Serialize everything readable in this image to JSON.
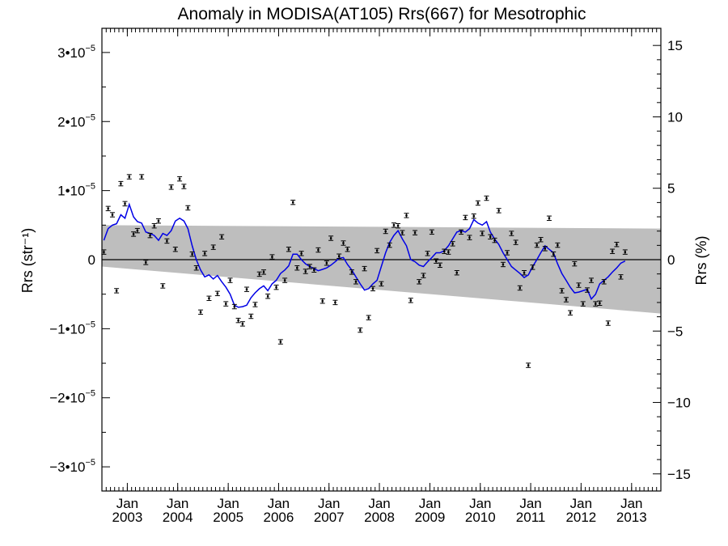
{
  "chart_data": {
    "type": "scatter",
    "title": "Anomaly in MODISA(AT105) Rrs(667) for Mesotrophic",
    "ylabel_left": "Rrs (str⁻¹)",
    "ylabel_right": "Rrs (%)",
    "xlim": [
      "2002-07-01",
      "2013-08-01"
    ],
    "ylim_left": [
      -3.35e-05,
      3.35e-05
    ],
    "ylim_right": [
      -16.2,
      16.2
    ],
    "grid": false,
    "legend": "none",
    "left_ticks": [
      {
        "value": 3e-05,
        "label": "3•10",
        "exp": "−5"
      },
      {
        "value": 2e-05,
        "label": "2•10",
        "exp": "−5"
      },
      {
        "value": 1e-05,
        "label": "1•10",
        "exp": "−5"
      },
      {
        "value": 0,
        "label": "0",
        "exp": ""
      },
      {
        "value": -1e-05,
        "label": "−1•10",
        "exp": "−5"
      },
      {
        "value": -2e-05,
        "label": "−2•10",
        "exp": "−5"
      },
      {
        "value": -3e-05,
        "label": "−3•10",
        "exp": "−5"
      }
    ],
    "right_ticks": [
      {
        "value": 15,
        "label": "15"
      },
      {
        "value": 10,
        "label": "10"
      },
      {
        "value": 5,
        "label": "5"
      },
      {
        "value": 0,
        "label": "0"
      },
      {
        "value": -5,
        "label": "−5"
      },
      {
        "value": -10,
        "label": "−10"
      },
      {
        "value": -15,
        "label": "−15"
      }
    ],
    "x_ticks": [
      {
        "date": "2003-01-01",
        "month": "Jan",
        "year": "2003"
      },
      {
        "date": "2004-01-01",
        "month": "Jan",
        "year": "2004"
      },
      {
        "date": "2005-01-01",
        "month": "Jan",
        "year": "2005"
      },
      {
        "date": "2006-01-01",
        "month": "Jan",
        "year": "2006"
      },
      {
        "date": "2007-01-01",
        "month": "Jan",
        "year": "2007"
      },
      {
        "date": "2008-01-01",
        "month": "Jan",
        "year": "2008"
      },
      {
        "date": "2009-01-01",
        "month": "Jan",
        "year": "2009"
      },
      {
        "date": "2010-01-01",
        "month": "Jan",
        "year": "2010"
      },
      {
        "date": "2011-01-01",
        "month": "Jan",
        "year": "2011"
      },
      {
        "date": "2012-01-01",
        "month": "Jan",
        "year": "2012"
      },
      {
        "date": "2013-01-01",
        "month": "Jan",
        "year": "2013"
      }
    ],
    "uncertainty_band": {
      "start": {
        "date": "2002-07-01",
        "upper": 5e-06,
        "lower": -1e-06
      },
      "end": {
        "date": "2013-08-01",
        "upper": 4.5e-06,
        "lower": -7.8e-06
      }
    },
    "zero_line": 0,
    "monthly_anomaly": {
      "start": "2002-07",
      "error_bar": 2e-07,
      "values": [
        1.1e-06,
        7.4e-06,
        6.5e-06,
        -4.5e-06,
        1.1e-05,
        8.1e-06,
        1.2e-05,
        3.7e-06,
        4.2e-06,
        1.2e-05,
        -4e-07,
        3.5e-06,
        4.9e-06,
        5.6e-06,
        -3.8e-06,
        2.7e-06,
        1.05e-05,
        1.5e-06,
        1.17e-05,
        1.06e-05,
        7.5e-06,
        8e-07,
        -1.2e-06,
        -7.6e-06,
        9e-07,
        -5.6e-06,
        1.8e-06,
        -4.9e-06,
        3.3e-06,
        -6.4e-06,
        -3e-06,
        -6.8e-06,
        -8.8e-06,
        -9.3e-06,
        -4.3e-06,
        -8.2e-06,
        -6.5e-06,
        -2.1e-06,
        -1.8e-06,
        -5.3e-06,
        4e-07,
        -4e-06,
        -1.19e-05,
        -3e-06,
        1.5e-06,
        8.3e-06,
        -1.2e-06,
        9e-07,
        -1.7e-06,
        -1e-06,
        -1.5e-06,
        1.4e-06,
        -6e-06,
        -5e-07,
        3.1e-06,
        -6.2e-06,
        5e-07,
        2.4e-06,
        1.5e-06,
        -1.8e-06,
        -3.2e-06,
        -1.02e-05,
        -1.3e-06,
        -8.4e-06,
        -4.2e-06,
        1.3e-06,
        -3.5e-06,
        4.1e-06,
        2.1e-06,
        5e-06,
        4.9e-06,
        3.9e-06,
        6.4e-06,
        -5.9e-06,
        3.9e-06,
        -3.2e-06,
        -2.3e-06,
        9e-07,
        4e-06,
        -2e-07,
        -8e-07,
        1.2e-06,
        1.1e-06,
        2.3e-06,
        -1.9e-06,
        4e-06,
        6.1e-06,
        3.2e-06,
        6.3e-06,
        8.2e-06,
        3.8e-06,
        8.9e-06,
        3.3e-06,
        2.8e-06,
        7.1e-06,
        -7e-07,
        1e-06,
        3.8e-06,
        2.5e-06,
        -4.1e-06,
        -1.9e-06,
        -1.53e-05,
        -1.1e-06,
        2.1e-06,
        2.9e-06,
        1.6e-06,
        6e-06,
        8e-07,
        2.1e-06,
        -4.5e-06,
        -5.8e-06,
        -7.7e-06,
        -6e-07,
        -3.7e-06,
        -6.4e-06,
        -4.4e-06,
        -3e-06,
        -6.4e-06,
        -6.3e-06,
        -3.2e-06,
        -9.2e-06,
        1.2e-06,
        2.2e-06,
        -2.5e-06,
        1.1e-06
      ]
    },
    "running_mean": {
      "start": "2002-07",
      "values": [
        2.8e-06,
        4.5e-06,
        5e-06,
        5.2e-06,
        6.5e-06,
        6e-06,
        8e-06,
        6.2e-06,
        5.5e-06,
        5.3e-06,
        4e-06,
        3.8e-06,
        3.5e-06,
        2.8e-06,
        3.8e-06,
        3.5e-06,
        4.2e-06,
        5.6e-06,
        6e-06,
        5.6e-06,
        4.5e-06,
        2e-06,
        0.0,
        -1.5e-06,
        -2.5e-06,
        -2.2e-06,
        -2.8e-06,
        -2.3e-06,
        -3.2e-06,
        -4e-06,
        -5e-06,
        -6.6e-06,
        -6.9e-06,
        -6.8e-06,
        -6.6e-06,
        -5.5e-06,
        -4.8e-06,
        -4.2e-06,
        -3.8e-06,
        -4.5e-06,
        -3.5e-06,
        -3e-06,
        -2e-06,
        -1.5e-06,
        -9e-07,
        8e-07,
        8e-07,
        0.0,
        -6e-07,
        -1e-06,
        -1.3e-06,
        -1.6e-06,
        -1.4e-06,
        -1.2e-06,
        -8e-07,
        -3e-07,
        2e-07,
        3e-07,
        -7e-07,
        -1.5e-06,
        -2.5e-06,
        -3.5e-06,
        -4.4e-06,
        -4.2e-06,
        -3.5e-06,
        -3e-06,
        -1e-06,
        1e-06,
        2.5e-06,
        3.5e-06,
        4.2e-06,
        3e-06,
        2e-06,
        0.0,
        -3e-07,
        -8e-07,
        -1e-06,
        -3e-07,
        3e-07,
        1e-06,
        1e-06,
        1.3e-06,
        2e-06,
        3e-06,
        4e-06,
        4.2e-06,
        4e-06,
        4.5e-06,
        5.8e-06,
        5.3e-06,
        5e-06,
        5.5e-06,
        4e-06,
        3e-06,
        2.2e-06,
        1e-06,
        0.0,
        -1e-06,
        -1.5e-06,
        -2e-06,
        -2.6e-06,
        -2.2e-06,
        -1e-06,
        0.0,
        1e-06,
        2e-06,
        1.5e-06,
        1e-06,
        -6e-07,
        -2e-06,
        -3e-06,
        -4e-06,
        -4.8e-06,
        -4.7e-06,
        -4.5e-06,
        -4.3e-06,
        -5.7e-06,
        -5e-06,
        -3.5e-06,
        -3e-06,
        -2.5e-06,
        -1.8e-06,
        -1.2e-06,
        -5e-07,
        -2e-07
      ]
    },
    "colors": {
      "band": "#bebebe",
      "running_mean": "#0000e6",
      "points": "#000000",
      "axes": "#000000",
      "background": "#ffffff"
    }
  }
}
